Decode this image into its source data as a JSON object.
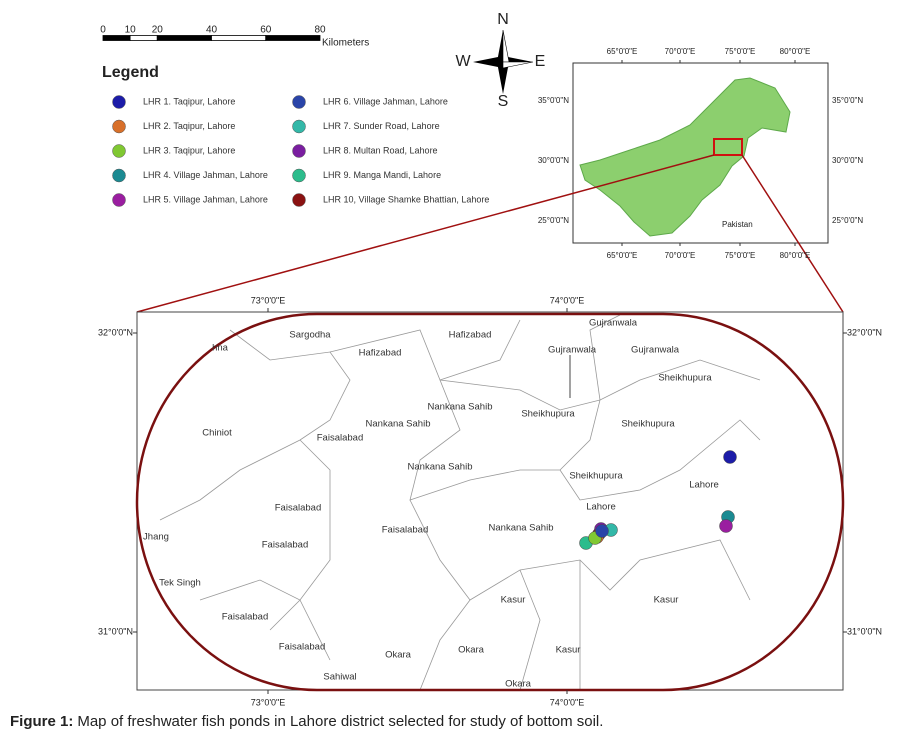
{
  "scale_bar": {
    "ticks": [
      0,
      10,
      20,
      40,
      60,
      80
    ],
    "unit": "Kilometers"
  },
  "compass": {
    "n": "N",
    "s": "S",
    "e": "E",
    "w": "W"
  },
  "legend": {
    "title": "Legend",
    "items": [
      {
        "label": "LHR 1. Taqipur, Lahore",
        "color": "#1c1ca8"
      },
      {
        "label": "LHR 2. Taqipur, Lahore",
        "color": "#d8702a"
      },
      {
        "label": "LHR 3. Taqipur, Lahore",
        "color": "#80c832"
      },
      {
        "label": "LHR 4. Village Jahman, Lahore",
        "color": "#1b8a92"
      },
      {
        "label": "LHR 5. Village Jahman, Lahore",
        "color": "#9a1ea0"
      },
      {
        "label": "LHR 6. Village Jahman, Lahore",
        "color": "#2a44a8"
      },
      {
        "label": "LHR 7. Sunder Road, Lahore",
        "color": "#33b8a8"
      },
      {
        "label": "LHR 8. Multan Road, Lahore",
        "color": "#7a1ea0"
      },
      {
        "label": "LHR 9. Manga Mandi, Lahore",
        "color": "#2cbc8c"
      },
      {
        "label": "LHR 10, Village Shamke Bhattian, Lahore",
        "color": "#8a1212"
      }
    ]
  },
  "inset_map": {
    "x_labels": [
      "65°0'0\"E",
      "70°0'0\"E",
      "75°0'0\"E",
      "80°0'0\"E"
    ],
    "y_labels": [
      "35°0'0\"N",
      "30°0'0\"N",
      "25°0'0\"N"
    ],
    "country": "Pakistan"
  },
  "main_map": {
    "x_labels": [
      "73°0'0\"E",
      "74°0'0\"E"
    ],
    "y_labels": [
      "32°0'0\"N",
      "31°0'0\"N"
    ],
    "places": [
      "hna",
      "Sargodha",
      "Hafizabad",
      "Hafizabad",
      "Gujranwala",
      "Gujranwala",
      "Gujranwala",
      "Sheikhupura",
      "Nankana Sahib",
      "Nankana Sahib",
      "Sheikhupura",
      "Sheikhupura",
      "Chiniot",
      "Faisalabad",
      "Nankana Sahib",
      "Lahore",
      "Sheikhupura",
      "Lahore",
      "Faisalabad",
      "Faisalabad",
      "Nankana Sahib",
      "Jhang",
      "Faisalabad",
      "Tek Singh",
      "Kasur",
      "Kasur",
      "Faisalabad",
      "Faisalabad",
      "Okara",
      "Okara",
      "Kasur",
      "Sahiwal",
      "Okara"
    ]
  },
  "caption": {
    "label": "Figure 1:",
    "text": "Map of freshwater fish ponds in Lahore district selected for study of bottom soil."
  }
}
